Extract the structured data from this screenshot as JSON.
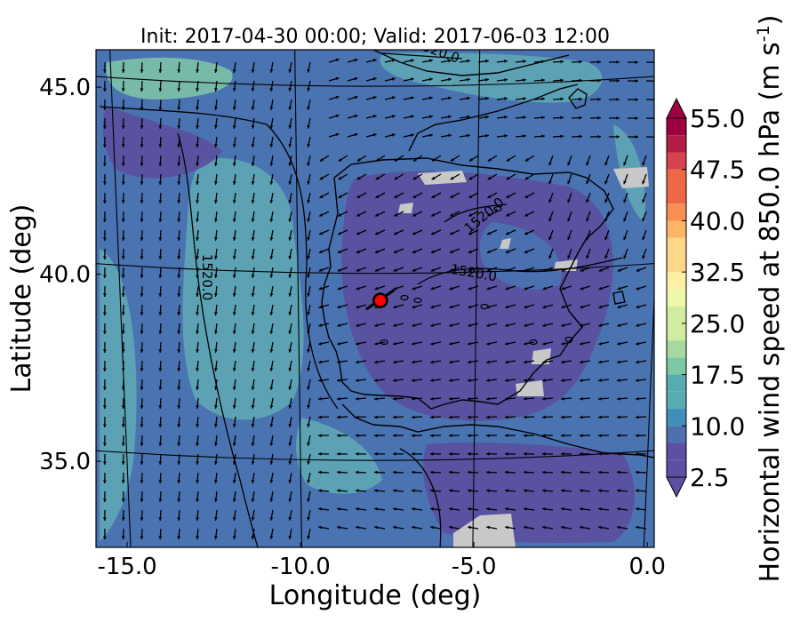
{
  "chart_data": {
    "type": "heatmap",
    "title": "Init: 2017-04-30 00:00; Valid: 2017-06-03 12:00",
    "xlabel": "Longitude (deg)",
    "ylabel": "Latitude (deg)",
    "xlim": [
      -15.9,
      0.2
    ],
    "ylim": [
      32.7,
      46.0
    ],
    "x_ticks": [
      -15.0,
      -10.0,
      -5.0,
      0.0
    ],
    "x_tick_labels": [
      "-15.0",
      "-10.0",
      "-5.0",
      "0.0"
    ],
    "y_ticks": [
      35.0,
      40.0,
      45.0
    ],
    "y_tick_labels": [
      "35.0",
      "40.0",
      "45.0"
    ],
    "colorbar": {
      "label": "Horizontal wind speed at 850.0 hPa (m s$^{-1}$)",
      "min": 2.5,
      "max": 55.0,
      "step": 2.5,
      "tick_values": [
        2.5,
        10.0,
        17.5,
        25.0,
        32.5,
        40.0,
        47.5,
        55.0
      ],
      "tick_labels": [
        "2.5",
        "10.0",
        "17.5",
        "25.0",
        "32.5",
        "40.0",
        "47.5",
        "55.0"
      ],
      "colormap": "Spectral_r",
      "extend": "both"
    },
    "contour_labels": [
      "1520.0",
      "1520.0",
      "1520.0",
      "1520.0"
    ],
    "marker": {
      "lon": -7.7,
      "lat": 39.3,
      "color": "#ff0000"
    },
    "colors": {
      "low_wind": "#5a4f9e",
      "mid_low_wind": "#4574b4",
      "mid_wind": "#5ea7b4",
      "higher_wind": "#7fc4a6",
      "missing": "#c8c8c8"
    }
  }
}
